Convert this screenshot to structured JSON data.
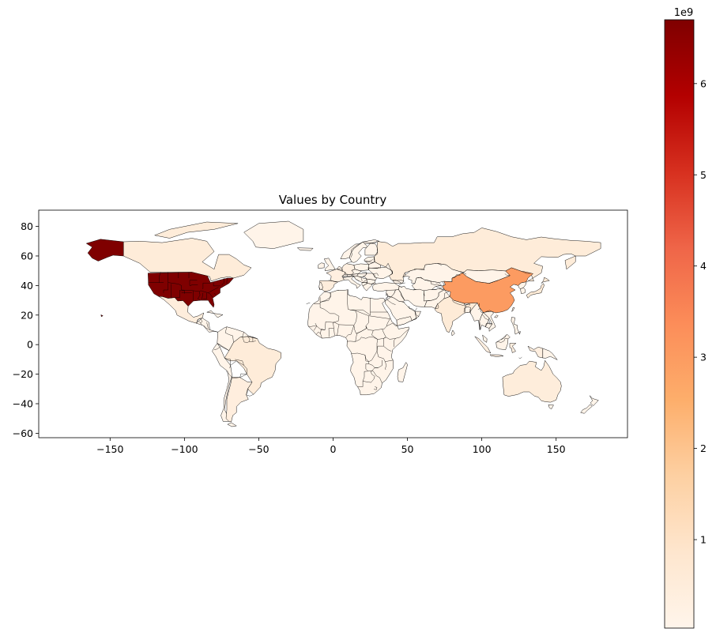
{
  "title": "Values by Country",
  "colors": {
    "ramp": [
      "#fff5eb",
      "#fee6ce",
      "#fdd0a2",
      "#fdae6b",
      "#fd8d3c",
      "#f16913",
      "#d94801",
      "#a63603",
      "#7f2704"
    ],
    "colorbar_ramp": [
      "#fff5eb",
      "#fee6ce",
      "#fdd0a2",
      "#fdae6b",
      "#fc8d59",
      "#ef6548",
      "#d7301f",
      "#b30000",
      "#7f0000"
    ],
    "land_border": "#000000"
  },
  "colorbar": {
    "label": "",
    "offset_text": "1e9",
    "min": 0.03,
    "max": 6.7,
    "ticks": [
      1,
      2,
      3,
      4,
      5,
      6
    ],
    "tick_labels": [
      "1",
      "2",
      "3",
      "4",
      "5",
      "6"
    ]
  },
  "chart_data": {
    "type": "choropleth",
    "title": "Values by Country",
    "xlabel": "",
    "ylabel": "",
    "xlim": [
      -198,
      198
    ],
    "ylim": [
      -63,
      91
    ],
    "xticks": [
      -150,
      -100,
      -50,
      0,
      50,
      100,
      150
    ],
    "xtick_labels": [
      "−150",
      "−100",
      "−50",
      "0",
      "50",
      "100",
      "150"
    ],
    "yticks": [
      -60,
      -40,
      -20,
      0,
      20,
      40,
      60,
      80
    ],
    "ytick_labels": [
      "−60",
      "−40",
      "−20",
      "0",
      "20",
      "40",
      "60",
      "80"
    ],
    "value_scale": "1e9",
    "countries": [
      {
        "name": "United States of America",
        "value": 6.7
      },
      {
        "name": "China",
        "value": 3.0
      },
      {
        "name": "Canada",
        "value": 0.55
      },
      {
        "name": "Russia",
        "value": 0.55
      },
      {
        "name": "Brazil",
        "value": 0.55
      },
      {
        "name": "India",
        "value": 0.6
      },
      {
        "name": "Australia",
        "value": 0.5
      },
      {
        "name": "Mexico",
        "value": 0.45
      },
      {
        "name": "Japan",
        "value": 0.6
      },
      {
        "name": "Indonesia",
        "value": 0.35
      },
      {
        "name": "Argentina",
        "value": 0.4
      },
      {
        "name": "Spain",
        "value": 0.45
      },
      {
        "name": "France",
        "value": 0.35
      },
      {
        "name": "Germany",
        "value": 0.35
      },
      {
        "name": "Other countries",
        "value": 0.1
      }
    ]
  }
}
